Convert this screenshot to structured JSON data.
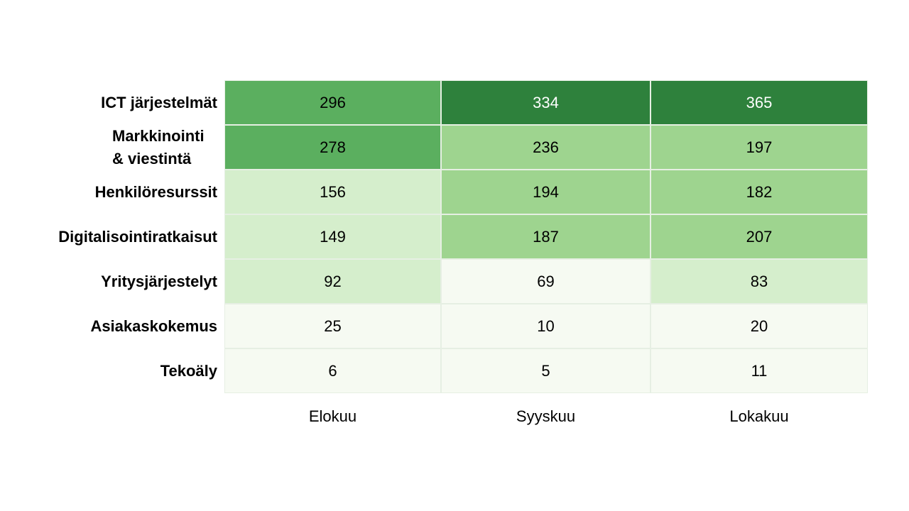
{
  "chart_data": {
    "type": "heatmap",
    "title": "",
    "columns": [
      "Elokuu",
      "Syyskuu",
      "Lokakuu"
    ],
    "rows": [
      {
        "label": [
          "ICT järjestelmät"
        ],
        "values": [
          296,
          334,
          365
        ]
      },
      {
        "label": [
          "Markkinointi",
          "& viestintä"
        ],
        "values": [
          278,
          236,
          197
        ]
      },
      {
        "label": [
          "Henkilöresurssit"
        ],
        "values": [
          156,
          194,
          182
        ]
      },
      {
        "label": [
          "Digitalisointiratkaisut"
        ],
        "values": [
          149,
          187,
          207
        ]
      },
      {
        "label": [
          "Yritysjärjestelyt"
        ],
        "values": [
          92,
          69,
          83
        ]
      },
      {
        "label": [
          "Asiakaskokemus"
        ],
        "values": [
          25,
          10,
          20
        ]
      },
      {
        "label": [
          "Tekoäly"
        ],
        "values": [
          6,
          5,
          11
        ]
      }
    ],
    "cell_colors": [
      [
        "#5baf5f",
        "#2e813c",
        "#2e813c"
      ],
      [
        "#5baf5f",
        "#9ed48f",
        "#9ed48f"
      ],
      [
        "#d5eecc",
        "#9ed48f",
        "#9ed48f"
      ],
      [
        "#d5eecc",
        "#9ed48f",
        "#9ed48f"
      ],
      [
        "#d5eecc",
        "#f6faf2",
        "#d5eecc"
      ],
      [
        "#f6faf2",
        "#f6faf2",
        "#f6faf2"
      ],
      [
        "#f6faf2",
        "#f6faf2",
        "#f6faf2"
      ]
    ],
    "text_colors": [
      [
        "#000000",
        "#ffffff",
        "#ffffff"
      ],
      [
        "#000000",
        "#000000",
        "#000000"
      ],
      [
        "#000000",
        "#000000",
        "#000000"
      ],
      [
        "#000000",
        "#000000",
        "#000000"
      ],
      [
        "#000000",
        "#000000",
        "#000000"
      ],
      [
        "#000000",
        "#000000",
        "#000000"
      ],
      [
        "#000000",
        "#000000",
        "#000000"
      ]
    ]
  }
}
